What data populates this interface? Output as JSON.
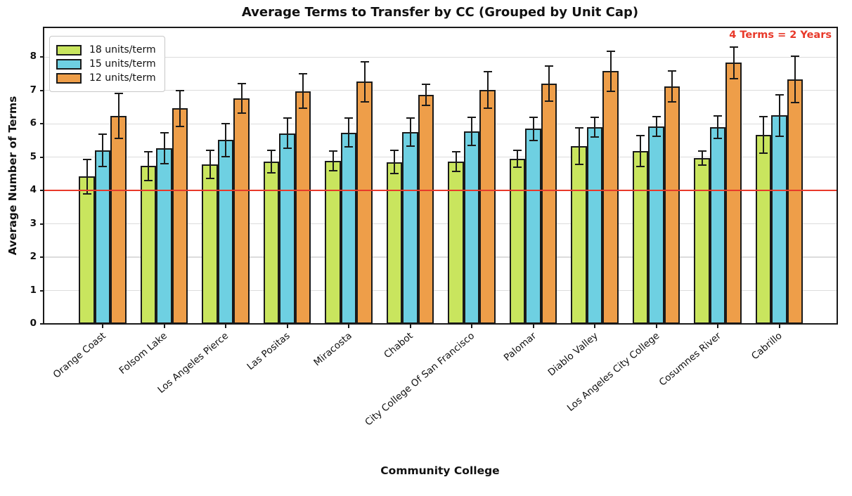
{
  "chart_data": {
    "type": "bar",
    "title": "Average Terms to Transfer by CC (Grouped by Unit Cap)",
    "xlabel": "Community College",
    "ylabel": "Average Number of Terms",
    "categories": [
      "Orange Coast",
      "Folsom Lake",
      "Los Angeles Pierce",
      "Las Positas",
      "Miracosta",
      "Chabot",
      "City College Of San Francisco",
      "Palomar",
      "Diablo Valley",
      "Los Angeles City College",
      "Cosumnes River",
      "Cabrillo"
    ],
    "series": [
      {
        "name": "18 units/term",
        "color": "#c9e55e",
        "values": [
          4.42,
          4.73,
          4.78,
          4.86,
          4.89,
          4.85,
          4.87,
          4.95,
          5.33,
          5.18,
          4.97,
          5.66
        ],
        "errors": [
          0.52,
          0.44,
          0.42,
          0.34,
          0.3,
          0.35,
          0.3,
          0.26,
          0.55,
          0.46,
          0.21,
          0.55
        ]
      },
      {
        "name": "15 units/term",
        "color": "#6ed0e2",
        "values": [
          5.2,
          5.27,
          5.51,
          5.72,
          5.74,
          5.76,
          5.77,
          5.85,
          5.9,
          5.92,
          5.9,
          6.25
        ],
        "errors": [
          0.48,
          0.47,
          0.5,
          0.46,
          0.44,
          0.42,
          0.42,
          0.35,
          0.3,
          0.3,
          0.33,
          0.62
        ]
      },
      {
        "name": "12 units/term",
        "color": "#ee9e49",
        "values": [
          6.24,
          6.46,
          6.77,
          6.98,
          7.26,
          6.87,
          7.01,
          7.21,
          7.58,
          7.12,
          7.83,
          7.33
        ],
        "errors": [
          0.68,
          0.54,
          0.44,
          0.52,
          0.6,
          0.32,
          0.55,
          0.53,
          0.6,
          0.46,
          0.48,
          0.7
        ]
      }
    ],
    "yticks": [
      0,
      1,
      2,
      3,
      4,
      5,
      6,
      7,
      8
    ],
    "ylim": [
      0,
      8.87
    ],
    "grid": true,
    "legend_position": "upper left",
    "bar_edge_color": "#1a1a1a",
    "reference_line": {
      "y": 4,
      "label": "4 Terms = 2 Years",
      "color": "#e8392a"
    }
  }
}
